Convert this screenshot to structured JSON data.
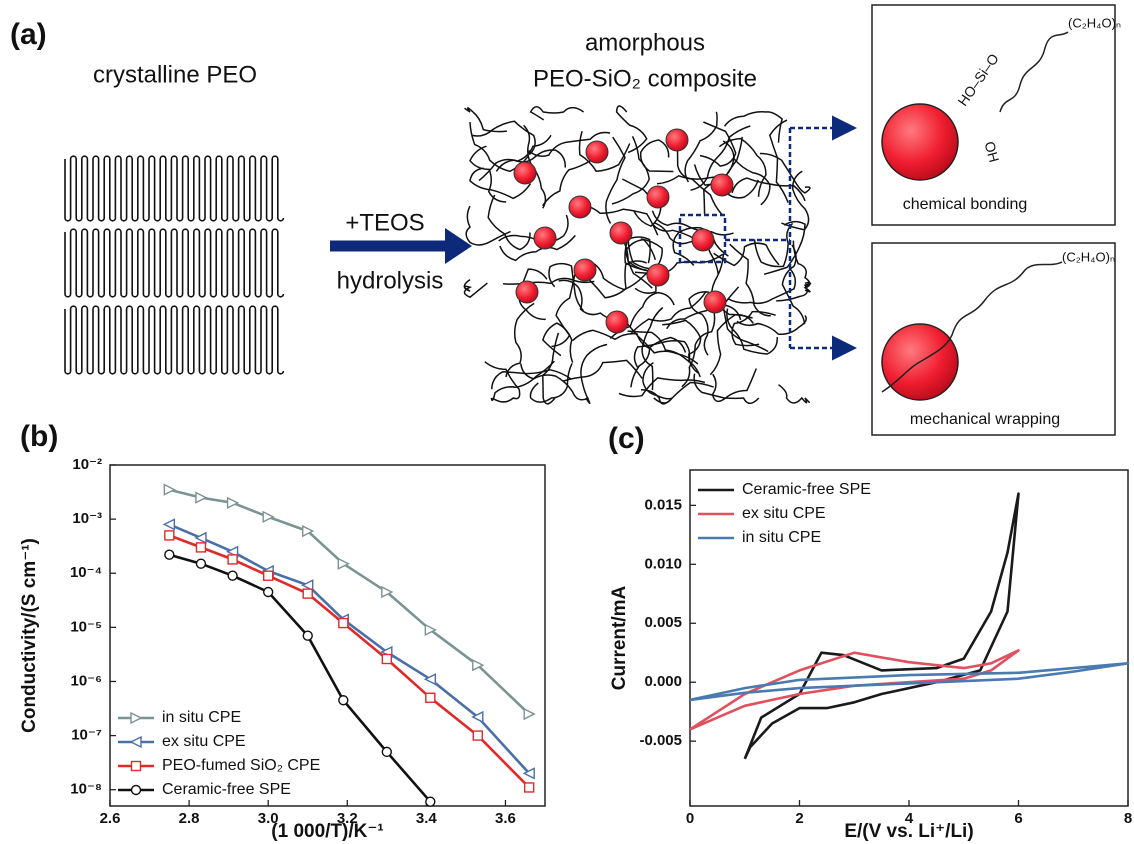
{
  "diagram": {
    "panel_label": "(a)",
    "left_title": "crystalline PEO",
    "arrow_top": "+TEOS",
    "arrow_bottom": "hydrolysis",
    "center_title": [
      "amorphous",
      "PEO-SiO₂ composite"
    ],
    "box_top": {
      "formula": "(C₂H₄O)ₙ",
      "bond": "HO–Si–O",
      "bond_oh": "OH",
      "caption": "chemical bonding"
    },
    "box_bottom": {
      "formula": "(C₂H₄O)ₙ",
      "caption": "mechanical wrapping"
    }
  },
  "chart_data": [
    {
      "type": "line",
      "title": "(b)",
      "xlabel": "(1 000/T)/K⁻¹",
      "ylabel": "Conductivity/(S cm⁻¹)",
      "log_y": true,
      "legend": "lower left",
      "x": [
        2.75,
        2.83,
        2.91,
        3.0,
        3.1,
        3.19,
        3.3,
        3.41,
        3.53,
        3.66
      ],
      "xlim": [
        2.6,
        3.7
      ],
      "xticks": [
        2.6,
        2.8,
        {
          "value": 3,
          "label": "3.0"
        },
        3.2,
        3.4,
        3.6
      ],
      "ylim": [
        5e-09,
        0.01
      ],
      "yticks": [
        {
          "value": 0.01,
          "label": "10⁻²"
        },
        {
          "value": 0.001,
          "label": "10⁻³"
        },
        {
          "value": 0.0001,
          "label": "10⁻⁴"
        },
        {
          "value": 1e-05,
          "label": "10⁻⁵"
        },
        {
          "value": 1e-06,
          "label": "10⁻⁶"
        },
        {
          "value": 1e-07,
          "label": "10⁻⁷"
        },
        {
          "value": 1e-08,
          "label": "10⁻⁸"
        }
      ],
      "series": [
        {
          "name": "in situ CPE",
          "color": "#7a9393",
          "marker": "triangle-right",
          "values": [
            0.0035,
            0.0025,
            0.002,
            0.0011,
            0.0006,
            0.00015,
            4.5e-05,
            9e-06,
            2e-06,
            2.5e-07
          ]
        },
        {
          "name": "ex situ CPE",
          "color": "#4a6fa8",
          "marker": "triangle-left",
          "values": [
            0.0008,
            0.00045,
            0.00025,
            0.00011,
            6e-05,
            1.4e-05,
            3.5e-06,
            1.1e-06,
            2.2e-07,
            2e-08
          ]
        },
        {
          "name": "PEO-fumed SiO₂ CPE",
          "color": "#e02a2a",
          "marker": "square",
          "values": [
            0.0005,
            0.0003,
            0.00018,
            9e-05,
            4.2e-05,
            1.2e-05,
            2.6e-06,
            5e-07,
            1e-07,
            1.1e-08
          ]
        },
        {
          "name": "Ceramic-free SPE",
          "color": "#111111",
          "marker": "circle",
          "values": [
            0.00022,
            0.00015,
            9e-05,
            4.5e-05,
            7e-06,
            4.5e-07,
            5e-08,
            6e-09,
            null,
            null
          ]
        }
      ]
    },
    {
      "type": "line",
      "title": "(c)",
      "xlabel": "E/(V vs. Li⁺/Li)",
      "ylabel": "Current/mA",
      "legend": "upper left",
      "xlim": [
        0,
        8
      ],
      "xticks": [
        0,
        2,
        4,
        6,
        8
      ],
      "ylim": [
        -0.0105,
        0.018
      ],
      "yticks": [
        -0.005,
        {
          "value": 0,
          "label": "0.000"
        },
        0.005,
        {
          "value": 0.01,
          "label": "0.010"
        },
        0.015
      ],
      "series": [
        {
          "name": "Ceramic-free SPE",
          "color": "#1a1a1a",
          "x": [
            1.0,
            1.3,
            2.0,
            2.4,
            2.8,
            3.5,
            4.5,
            5.0,
            5.5,
            5.8,
            6.0,
            5.8,
            5.3,
            4.5,
            3.5,
            3.0,
            2.5,
            2.0,
            1.5,
            1.1,
            1.0
          ],
          "values": [
            -0.0065,
            -0.003,
            -0.001,
            0.0025,
            0.0023,
            0.001,
            0.0012,
            0.002,
            0.006,
            0.011,
            0.016,
            0.006,
            0.001,
            0,
            -0.001,
            -0.0017,
            -0.0022,
            -0.0022,
            -0.0035,
            -0.0055,
            -0.0065
          ]
        },
        {
          "name": "ex situ CPE",
          "color": "#e0505f",
          "x": [
            0,
            0.5,
            1,
            2,
            3,
            4,
            5,
            5.5,
            6,
            5.5,
            5,
            4,
            3,
            2,
            1,
            0.5,
            0
          ],
          "values": [
            -0.004,
            -0.0025,
            -0.001,
            0.001,
            0.0025,
            0.0017,
            0.0012,
            0.0016,
            0.0027,
            0.001,
            0.0003,
            0,
            -0.0003,
            -0.001,
            -0.002,
            -0.003,
            -0.004
          ]
        },
        {
          "name": "in situ CPE",
          "color": "#4a7ab0",
          "x": [
            0,
            1,
            2,
            4,
            6,
            7,
            8,
            7,
            6,
            4,
            2,
            1,
            0
          ],
          "values": [
            -0.0015,
            -0.0005,
            0.0002,
            0.0006,
            0.0008,
            0.0012,
            0.0016,
            0.0009,
            0.0003,
            -0.0001,
            -0.0005,
            -0.0009,
            -0.0015
          ]
        }
      ]
    }
  ]
}
